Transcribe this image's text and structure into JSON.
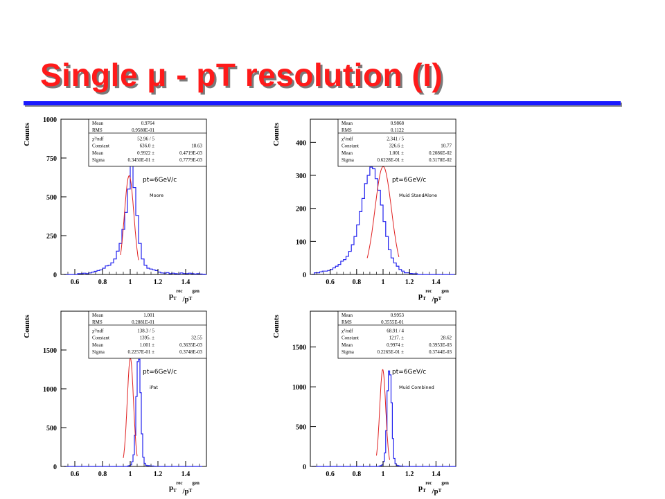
{
  "slide": {
    "title": "Single μ - pT resolution (I)"
  },
  "chart_data": [
    {
      "type": "histogram",
      "ylabel": "Counts",
      "xlabel_main": "p",
      "xlabel_sub1": "T",
      "xlabel_sup1": "rec",
      "xlabel_mid": "/p",
      "xlabel_sub2": "T",
      "xlabel_sup2": "gen",
      "xlim": [
        0.5,
        1.55
      ],
      "ylim": [
        0,
        1000
      ],
      "xticks": [
        0.6,
        0.8,
        1,
        1.2,
        1.4
      ],
      "xtick_labels": [
        "0.6",
        "0.8",
        "1",
        "1.2",
        "1.4"
      ],
      "yticks": [
        0,
        250,
        500,
        750,
        1000
      ],
      "ytick_labels": [
        "0",
        "250",
        "500",
        "750",
        "1000"
      ],
      "annotation": "pt=6GeV/c",
      "subannotation": "Moore",
      "stats": [
        {
          "label": "Mean",
          "value": "0.9764",
          "error": ""
        },
        {
          "label": "RMS",
          "value": "0.9580E-01",
          "error": ""
        },
        {
          "label": "χ²/ndf",
          "value": "52.96  /  5",
          "error": ""
        },
        {
          "label": "Constant",
          "value": "636.0 ±",
          "error": "18.63"
        },
        {
          "label": "Mean",
          "value": "0.9922 ±",
          "error": "0.4719E-03"
        },
        {
          "label": "Sigma",
          "value": "0.3450E-01 ±",
          "error": "0.7779E-03"
        }
      ],
      "fit": {
        "constant": 636.0,
        "mean": 0.9922,
        "sigma": 0.0345,
        "range": [
          0.93,
          1.06
        ]
      },
      "series": [
        {
          "color": "#2222ee",
          "bin_start": 0.52,
          "bin_width": 0.02,
          "counts": [
            0,
            0,
            0,
            0,
            0,
            5,
            5,
            8,
            5,
            10,
            15,
            20,
            25,
            30,
            40,
            55,
            60,
            75,
            100,
            150,
            200,
            290,
            400,
            550,
            700,
            560,
            380,
            200,
            100,
            60,
            40,
            35,
            30,
            25,
            15,
            10,
            8,
            12,
            5,
            8,
            5,
            3,
            10,
            6,
            5,
            8,
            5,
            3,
            5,
            3,
            2,
            0
          ]
        }
      ]
    },
    {
      "type": "histogram",
      "ylabel": "Counts",
      "xlabel_main": "p",
      "xlabel_sub1": "T",
      "xlabel_sup1": "rec",
      "xlabel_mid": "/p",
      "xlabel_sub2": "T",
      "xlabel_sup2": "gen",
      "xlim": [
        0.45,
        1.55
      ],
      "ylim": [
        0,
        470
      ],
      "xticks": [
        0.6,
        0.8,
        1,
        1.2,
        1.4
      ],
      "xtick_labels": [
        "0.6",
        "0.8",
        "1",
        "1.2",
        "1.4"
      ],
      "yticks": [
        0,
        100,
        200,
        300,
        400
      ],
      "ytick_labels": [
        "0",
        "100",
        "200",
        "300",
        "400"
      ],
      "annotation": "pt=6GeV/c",
      "subannotation": "Muid StandAlone",
      "stats": [
        {
          "label": "Mean",
          "value": "0.9868",
          "error": ""
        },
        {
          "label": "RMS",
          "value": "0.1122",
          "error": ""
        },
        {
          "label": "χ²/ndf",
          "value": "2.341  /  5",
          "error": ""
        },
        {
          "label": "Constant",
          "value": "326.6 ±",
          "error": "10.77"
        },
        {
          "label": "Mean",
          "value": "1.001 ±",
          "error": "0.2086E-02"
        },
        {
          "label": "Sigma",
          "value": "0.6228E-01 ±",
          "error": "0.3178E-02"
        }
      ],
      "fit": {
        "constant": 326.6,
        "mean": 1.001,
        "sigma": 0.06228,
        "range": [
          0.88,
          1.12
        ]
      },
      "series": [
        {
          "color": "#2222ee",
          "bin_start": 0.46,
          "bin_width": 0.02,
          "counts": [
            0,
            5,
            5,
            8,
            10,
            10,
            12,
            15,
            20,
            25,
            30,
            40,
            45,
            55,
            70,
            90,
            115,
            150,
            190,
            230,
            275,
            300,
            325,
            320,
            290,
            255,
            210,
            160,
            115,
            75,
            50,
            35,
            25,
            15,
            10,
            5,
            5,
            3,
            2,
            2,
            0,
            0,
            0,
            0,
            0,
            0,
            0,
            0,
            0,
            0,
            0,
            0,
            0,
            0
          ]
        }
      ]
    },
    {
      "type": "histogram",
      "ylabel": "Counts",
      "xlabel_main": "p",
      "xlabel_sub1": "T",
      "xlabel_sup1": "rec",
      "xlabel_mid": "/p",
      "xlabel_sub2": "T",
      "xlabel_sup2": "gen",
      "xlim": [
        0.5,
        1.55
      ],
      "ylim": [
        0,
        2000
      ],
      "xticks": [
        0.6,
        0.8,
        1,
        1.2,
        1.4
      ],
      "xtick_labels": [
        "0.6",
        "0.8",
        "1",
        "1.2",
        "1.4"
      ],
      "yticks": [
        0,
        500,
        1000,
        1500
      ],
      "ytick_labels": [
        "0",
        "500",
        "1000",
        "1500"
      ],
      "annotation": "pt=6GeV/c",
      "subannotation": "iPat",
      "stats": [
        {
          "label": "Mean",
          "value": "1.001",
          "error": ""
        },
        {
          "label": "RMS",
          "value": "0.2881E-01",
          "error": ""
        },
        {
          "label": "χ²/ndf",
          "value": "138.3  /  5",
          "error": ""
        },
        {
          "label": "Constant",
          "value": "1395. ±",
          "error": "32.55"
        },
        {
          "label": "Mean",
          "value": "1.001 ±",
          "error": "0.3635E-03"
        },
        {
          "label": "Sigma",
          "value": "0.2257E-01 ±",
          "error": "0.3748E-03"
        }
      ],
      "fit": {
        "constant": 1395,
        "mean": 1.001,
        "sigma": 0.02257,
        "range": [
          0.95,
          1.05
        ]
      },
      "series": [
        {
          "color": "#2222ee",
          "bin_start": 0.52,
          "bin_width": 0.01,
          "counts": [
            0,
            0,
            0,
            0,
            0,
            0,
            0,
            0,
            0,
            0,
            0,
            0,
            0,
            0,
            0,
            0,
            0,
            0,
            0,
            0,
            0,
            0,
            0,
            0,
            0,
            0,
            0,
            0,
            0,
            0,
            0,
            0,
            0,
            0,
            0,
            0,
            0,
            0,
            0,
            0,
            0,
            0,
            0,
            0,
            0,
            0,
            5,
            10,
            20,
            60,
            150,
            400,
            900,
            1350,
            1380,
            950,
            420,
            120,
            40,
            15,
            10,
            10,
            5,
            5,
            5,
            3,
            3,
            2,
            2,
            0,
            0,
            0,
            0,
            0,
            0,
            0,
            0,
            0,
            0,
            0,
            0,
            0,
            0,
            0,
            0,
            0,
            0,
            0,
            0,
            0,
            0,
            0,
            0,
            0,
            0,
            0,
            0,
            0,
            0,
            0
          ]
        }
      ]
    },
    {
      "type": "histogram",
      "ylabel": "Counts",
      "xlabel_main": "p",
      "xlabel_sub1": "T",
      "xlabel_sup1": "rec",
      "xlabel_mid": "/p",
      "xlabel_sub2": "T",
      "xlabel_sup2": "gen",
      "xlim": [
        0.45,
        1.55
      ],
      "ylim": [
        0,
        1950
      ],
      "xticks": [
        0.6,
        0.8,
        1,
        1.2,
        1.4
      ],
      "xtick_labels": [
        "0.6",
        "0.8",
        "1",
        "1.2",
        "1.4"
      ],
      "yticks": [
        0,
        500,
        1000,
        1500
      ],
      "ytick_labels": [
        "0",
        "500",
        "1000",
        "1500"
      ],
      "annotation": "pt=6GeV/c",
      "subannotation": "Muid Combined",
      "stats": [
        {
          "label": "Mean",
          "value": "0.9953",
          "error": ""
        },
        {
          "label": "RMS",
          "value": "0.3555E-01",
          "error": ""
        },
        {
          "label": "χ²/ndf",
          "value": "68.91  /  4",
          "error": ""
        },
        {
          "label": "Constant",
          "value": "1217. ±",
          "error": "28.62"
        },
        {
          "label": "Mean",
          "value": "0.9974 ±",
          "error": "0.3953E-03"
        },
        {
          "label": "Sigma",
          "value": "0.2265E-01 ±",
          "error": "0.3744E-03"
        }
      ],
      "fit": {
        "constant": 1217,
        "mean": 0.9974,
        "sigma": 0.02265,
        "range": [
          0.95,
          1.05
        ]
      },
      "series": [
        {
          "color": "#2222ee",
          "bin_start": 0.46,
          "bin_width": 0.01,
          "counts": [
            0,
            0,
            0,
            0,
            0,
            0,
            0,
            0,
            0,
            0,
            0,
            0,
            0,
            0,
            0,
            0,
            0,
            0,
            0,
            0,
            0,
            0,
            0,
            0,
            0,
            0,
            0,
            0,
            0,
            0,
            0,
            0,
            0,
            0,
            0,
            0,
            0,
            0,
            0,
            0,
            0,
            0,
            0,
            0,
            0,
            0,
            0,
            0,
            0,
            0,
            0,
            5,
            10,
            20,
            60,
            170,
            450,
            950,
            1200,
            1150,
            800,
            350,
            100,
            35,
            15,
            10,
            5,
            5,
            3,
            3,
            2,
            2,
            0,
            0,
            0,
            0,
            0,
            0,
            0,
            0,
            0,
            0,
            0,
            0,
            0,
            0,
            0,
            0,
            0,
            0,
            0,
            0,
            0,
            0,
            0,
            0,
            0,
            0,
            0,
            0,
            0,
            0,
            0,
            0,
            0,
            0,
            0,
            0,
            0,
            0
          ]
        }
      ]
    }
  ]
}
